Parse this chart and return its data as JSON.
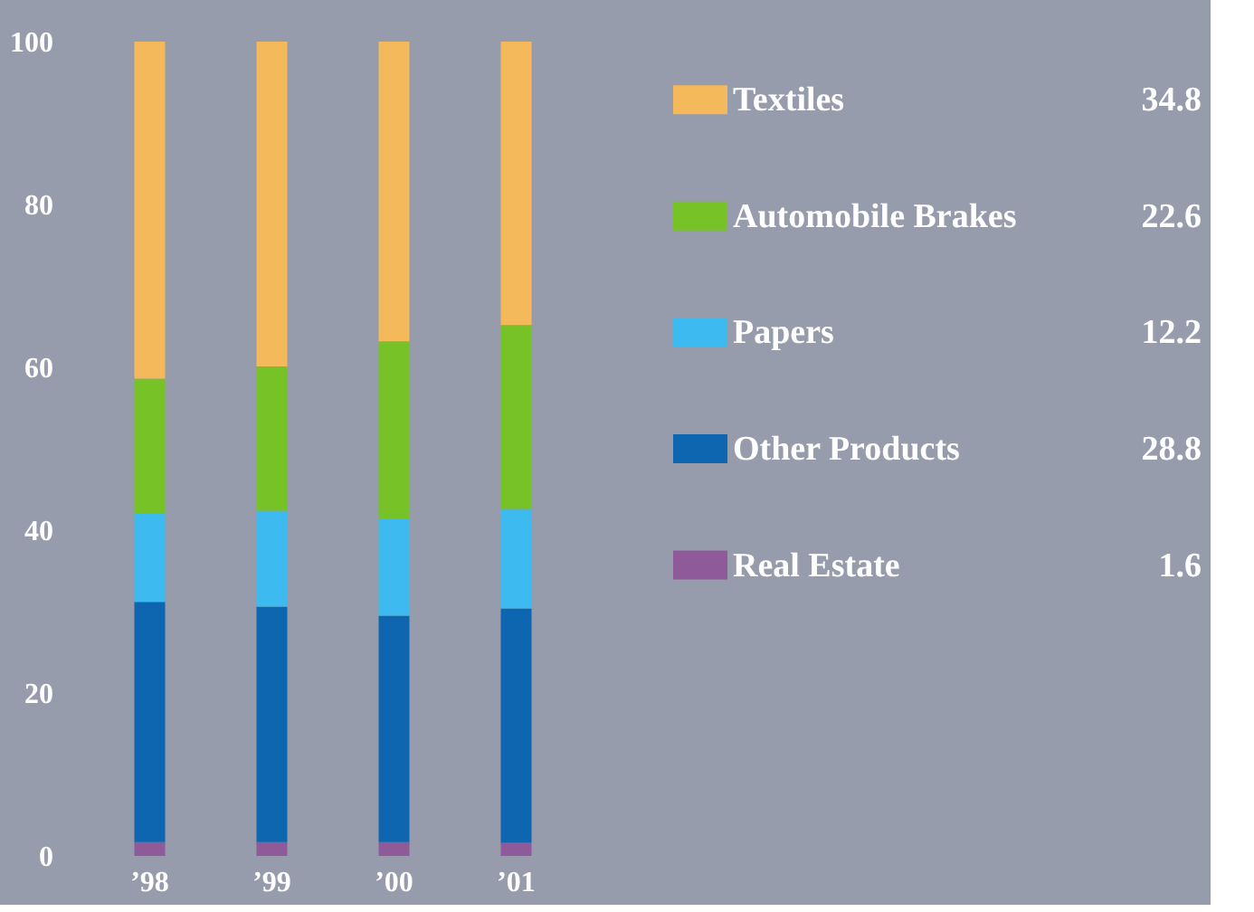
{
  "chart_data": {
    "type": "bar",
    "stacked": true,
    "categories": [
      "’98",
      "’99",
      "’00",
      "’01"
    ],
    "series": [
      {
        "name": "Real Estate",
        "color": "#8e5a9a",
        "values": [
          1.7,
          1.7,
          1.7,
          1.6
        ]
      },
      {
        "name": "Other Products",
        "color": "#0f66b0",
        "values": [
          29.5,
          28.9,
          27.8,
          28.8
        ]
      },
      {
        "name": "Papers",
        "color": "#3dbaf0",
        "values": [
          10.8,
          11.8,
          11.9,
          12.2
        ]
      },
      {
        "name": "Automobile Brakes",
        "color": "#77c226",
        "values": [
          16.6,
          17.7,
          21.8,
          22.6
        ]
      },
      {
        "name": "Textiles",
        "color": "#f4b95a",
        "values": [
          41.4,
          39.9,
          36.8,
          34.8
        ]
      }
    ],
    "ylim": [
      0,
      100
    ],
    "yticks": [
      0,
      20,
      40,
      60,
      80,
      100
    ],
    "grid": false,
    "legend": "right",
    "annotations": [
      "34.8",
      "22.6",
      "12.2",
      "28.8",
      "1.6"
    ]
  }
}
